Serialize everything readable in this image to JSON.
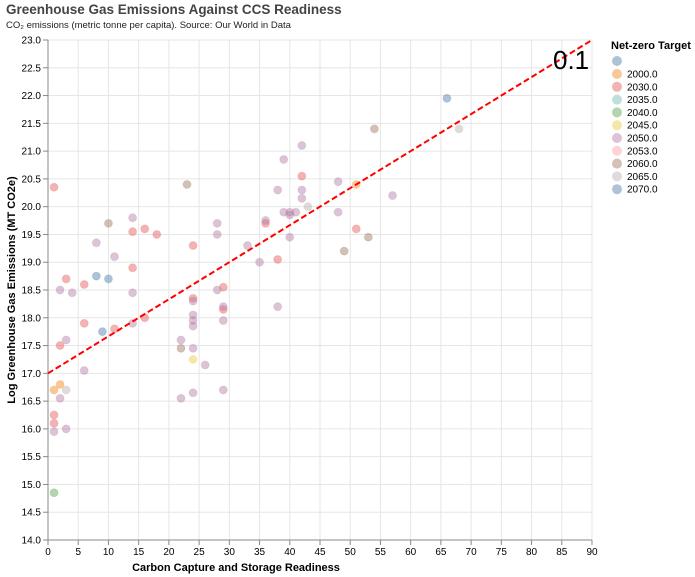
{
  "chart_data": {
    "type": "scatter",
    "title": "Greenhouse Gas Emissions Against CCS Readiness",
    "subtitle": "CO₂ emissions (metric tonne per capita). Source: Our World in Data",
    "xlabel": "Carbon Capture and Storage Readiness",
    "ylabel": "Log Greenhouse Gas Emissions (MT CO2e)",
    "xlim": [
      0,
      90
    ],
    "ylim": [
      14.0,
      23.0
    ],
    "x_ticks": [
      "0",
      "5",
      "10",
      "15",
      "20",
      "25",
      "30",
      "35",
      "40",
      "45",
      "50",
      "55",
      "60",
      "65",
      "70",
      "75",
      "80",
      "85",
      "90"
    ],
    "y_ticks": [
      "14.0",
      "14.5",
      "15.0",
      "15.5",
      "16.0",
      "16.5",
      "17.0",
      "17.5",
      "18.0",
      "18.5",
      "19.0",
      "19.5",
      "20.0",
      "20.5",
      "21.0",
      "21.5",
      "22.0",
      "22.5",
      "23.0"
    ],
    "grid": true,
    "legend_title": "Net-zero Target",
    "legend_placement": "right",
    "legend": [
      {
        "label": "2000.0",
        "color": "#f58518"
      },
      {
        "label": "2030.0",
        "color": "#e45756"
      },
      {
        "label": "2035.0",
        "color": "#72b7b2"
      },
      {
        "label": "2040.0",
        "color": "#54a24b"
      },
      {
        "label": "2045.0",
        "color": "#eeca3b"
      },
      {
        "label": "2050.0",
        "color": "#b279a2"
      },
      {
        "label": "2053.0",
        "color": "#ff9da6"
      },
      {
        "label": "2060.0",
        "color": "#9d755d"
      },
      {
        "label": "2065.0",
        "color": "#bab0ac"
      },
      {
        "label": "2070.0",
        "color": "#4c78a8"
      }
    ],
    "legend_extra": {
      "label": "",
      "color": "#4c78a8"
    },
    "trendline": {
      "x": [
        0,
        90
      ],
      "y": [
        17.0,
        23.0
      ],
      "color": "#ff0000",
      "dash": true
    },
    "annotation": "0.1",
    "series": [
      {
        "target": "2000.0",
        "points": [
          [
            2,
            16.8
          ],
          [
            1,
            16.7
          ],
          [
            51,
            20.4
          ]
        ]
      },
      {
        "target": "2030.0",
        "points": [
          [
            1,
            20.35
          ],
          [
            3,
            18.7
          ],
          [
            6,
            18.6
          ],
          [
            6,
            17.9
          ],
          [
            2,
            17.5
          ],
          [
            1,
            16.25
          ],
          [
            1,
            16.1
          ],
          [
            11,
            17.8
          ],
          [
            14,
            19.55
          ],
          [
            16,
            19.6
          ],
          [
            18,
            19.5
          ],
          [
            14,
            18.9
          ],
          [
            16,
            18.0
          ],
          [
            24,
            19.3
          ],
          [
            24,
            18.35
          ],
          [
            29,
            18.55
          ],
          [
            29,
            18.15
          ],
          [
            36,
            19.7
          ],
          [
            38,
            19.05
          ],
          [
            42,
            20.55
          ],
          [
            51,
            19.6
          ]
        ]
      },
      {
        "target": "2040.0",
        "points": [
          [
            1,
            14.85
          ]
        ]
      },
      {
        "target": "2045.0",
        "points": [
          [
            24,
            17.25
          ]
        ]
      },
      {
        "target": "2050.0",
        "points": [
          [
            2,
            18.5
          ],
          [
            4,
            18.45
          ],
          [
            8,
            19.35
          ],
          [
            11,
            19.1
          ],
          [
            14,
            19.8
          ],
          [
            14,
            18.45
          ],
          [
            14,
            17.9
          ],
          [
            6,
            17.05
          ],
          [
            3,
            17.6
          ],
          [
            2,
            16.55
          ],
          [
            1,
            15.95
          ],
          [
            3,
            16.0
          ],
          [
            22,
            17.6
          ],
          [
            22,
            16.55
          ],
          [
            24,
            17.45
          ],
          [
            24,
            18.3
          ],
          [
            24,
            18.05
          ],
          [
            24,
            17.85
          ],
          [
            24,
            16.65
          ],
          [
            26,
            17.15
          ],
          [
            28,
            19.7
          ],
          [
            28,
            19.5
          ],
          [
            28,
            18.5
          ],
          [
            29,
            18.2
          ],
          [
            29,
            17.95
          ],
          [
            29,
            16.7
          ],
          [
            33,
            19.3
          ],
          [
            35,
            19.0
          ],
          [
            36,
            19.75
          ],
          [
            38,
            20.3
          ],
          [
            39,
            20.85
          ],
          [
            39,
            19.9
          ],
          [
            40,
            19.9
          ],
          [
            40,
            19.45
          ],
          [
            40,
            19.85
          ],
          [
            41,
            19.9
          ],
          [
            42,
            21.1
          ],
          [
            42,
            20.3
          ],
          [
            42,
            20.15
          ],
          [
            48,
            20.45
          ],
          [
            48,
            19.9
          ],
          [
            57,
            20.2
          ],
          [
            38,
            18.2
          ],
          [
            24,
            17.95
          ]
        ]
      },
      {
        "target": "2060.0",
        "points": [
          [
            23,
            20.4
          ],
          [
            10,
            19.7
          ],
          [
            22,
            17.45
          ],
          [
            49,
            19.2
          ],
          [
            53,
            19.45
          ],
          [
            54,
            21.4
          ]
        ]
      },
      {
        "target": "2065.0",
        "points": [
          [
            68,
            21.4
          ],
          [
            43,
            20.0
          ],
          [
            3,
            16.7
          ]
        ]
      },
      {
        "target": "2070.0",
        "points": [
          [
            8,
            18.75
          ],
          [
            10,
            18.7
          ],
          [
            9,
            17.75
          ],
          [
            66,
            21.95
          ]
        ]
      }
    ]
  }
}
